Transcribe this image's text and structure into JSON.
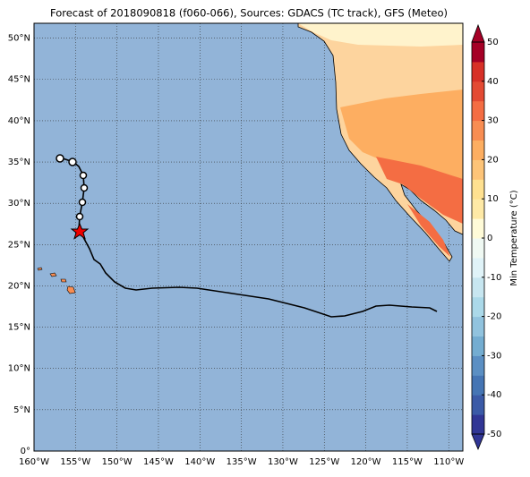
{
  "map": {
    "title": "Forecast of 2018090818 (f060-066), Sources: GDACS (TC track), GFS (Meteo)",
    "xlim": [
      -160,
      -108.3
    ],
    "ylim": [
      0,
      51.8
    ],
    "xticks": [
      {
        "value": -160,
        "label": "160°W"
      },
      {
        "value": -155,
        "label": "155°W"
      },
      {
        "value": -150,
        "label": "150°W"
      },
      {
        "value": -145,
        "label": "145°W"
      },
      {
        "value": -140,
        "label": "140°W"
      },
      {
        "value": -135,
        "label": "135°W"
      },
      {
        "value": -130,
        "label": "130°W"
      },
      {
        "value": -125,
        "label": "125°W"
      },
      {
        "value": -120,
        "label": "120°W"
      },
      {
        "value": -115,
        "label": "115°W"
      },
      {
        "value": -110,
        "label": "110°W"
      }
    ],
    "yticks": [
      {
        "value": 0,
        "label": "0°"
      },
      {
        "value": 5,
        "label": "5°N"
      },
      {
        "value": 10,
        "label": "10°N"
      },
      {
        "value": 15,
        "label": "15°N"
      },
      {
        "value": 20,
        "label": "20°N"
      },
      {
        "value": 25,
        "label": "25°N"
      },
      {
        "value": 30,
        "label": "30°N"
      },
      {
        "value": 35,
        "label": "35°N"
      },
      {
        "value": 40,
        "label": "40°N"
      },
      {
        "value": 45,
        "label": "45°N"
      },
      {
        "value": 50,
        "label": "50°N"
      }
    ],
    "grid": true,
    "colorbar": {
      "label": "Min Temperature (°C)",
      "lim": [
        -50,
        50
      ],
      "ticks": [
        -50,
        -40,
        -30,
        -20,
        -10,
        0,
        10,
        20,
        30,
        40,
        50
      ],
      "colors": [
        "#313695",
        "#3b5aa7",
        "#4575b4",
        "#5b8fc3",
        "#74add1",
        "#91c3de",
        "#abd9e9",
        "#c7e6f0",
        "#e0f3f8",
        "#f0f9f3",
        "#fffbd8",
        "#fee9a6",
        "#fee090",
        "#fdc478",
        "#fdae61",
        "#f88d52",
        "#f46d43",
        "#e34a33",
        "#d73027",
        "#a50026"
      ]
    }
  }
}
